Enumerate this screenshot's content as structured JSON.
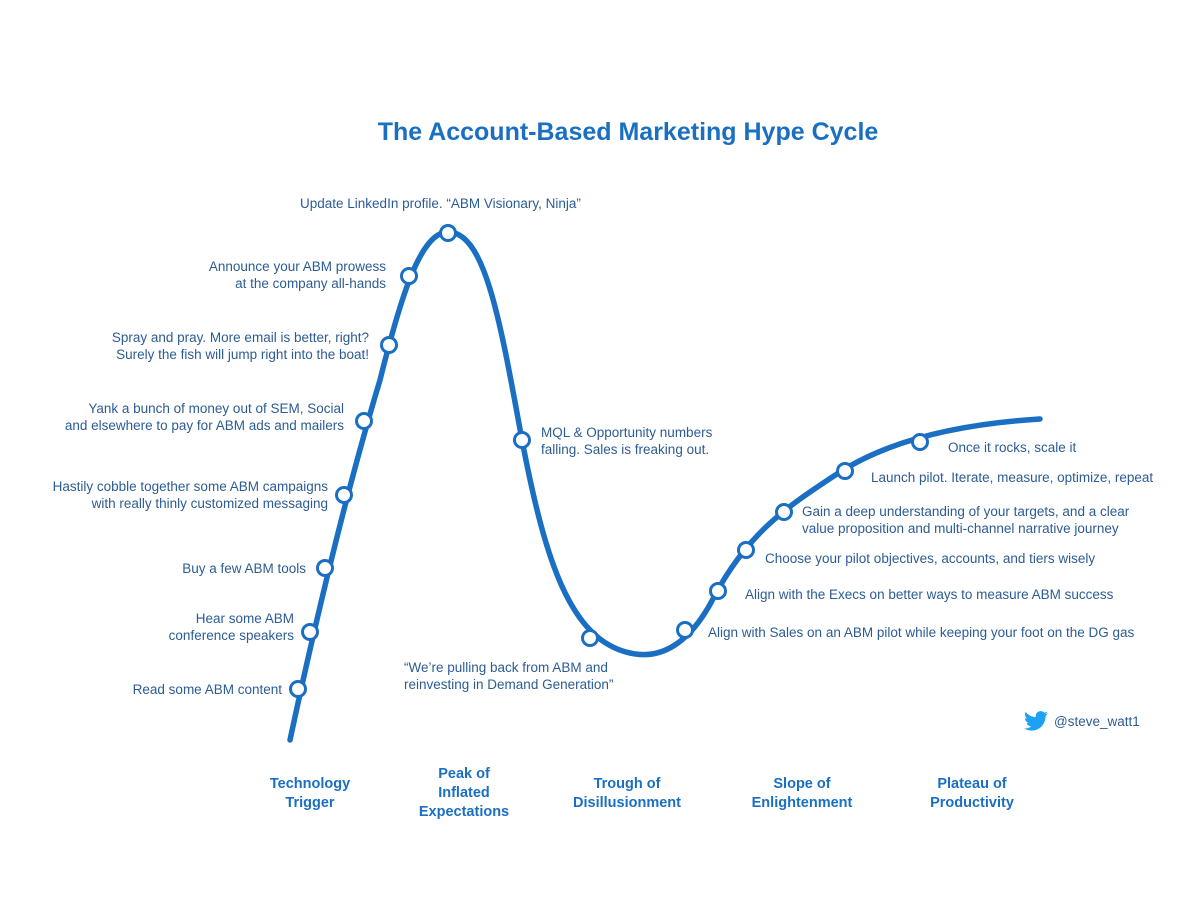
{
  "title": "The Account-Based Marketing Hype Cycle",
  "colors": {
    "curve": "#1a6fc2",
    "label": "#2c5c95",
    "twitter": "#1da1f2"
  },
  "milestones": [
    {
      "lines": [
        "Read some ABM content"
      ]
    },
    {
      "lines": [
        "Hear some ABM",
        "conference speakers"
      ]
    },
    {
      "lines": [
        "Buy a few ABM tools"
      ]
    },
    {
      "lines": [
        "Hastily cobble together some ABM campaigns",
        "with really thinly customized messaging"
      ]
    },
    {
      "lines": [
        "Yank a bunch of money out of SEM, Social",
        "and elsewhere to pay for ABM ads and mailers"
      ]
    },
    {
      "lines": [
        "Spray and pray. More email is better, right?",
        "Surely the fish will jump right into the boat!"
      ]
    },
    {
      "lines": [
        "Announce your ABM prowess",
        "at the company all-hands"
      ]
    },
    {
      "lines": [
        "Update LinkedIn profile. “ABM Visionary, Ninja”"
      ]
    },
    {
      "lines": [
        "MQL & Opportunity numbers",
        "falling. Sales is freaking out."
      ]
    },
    {
      "lines": [
        "“We’re pulling back from ABM and",
        "reinvesting in Demand Generation”"
      ]
    },
    {
      "lines": [
        "Align with Sales on an ABM pilot while keeping your foot on the DG gas"
      ]
    },
    {
      "lines": [
        "Align with the Execs on better ways to measure ABM success"
      ]
    },
    {
      "lines": [
        "Choose your pilot objectives, accounts, and tiers wisely"
      ]
    },
    {
      "lines": [
        "Gain a deep understanding of your targets, and a clear",
        "value proposition and multi-channel narrative journey"
      ]
    },
    {
      "lines": [
        "Launch pilot. Iterate, measure, optimize, repeat"
      ]
    },
    {
      "lines": [
        "Once it rocks, scale it"
      ]
    }
  ],
  "phases": [
    {
      "lines": [
        "Technology",
        "Trigger"
      ]
    },
    {
      "lines": [
        "Peak of",
        "Inflated",
        "Expectations"
      ]
    },
    {
      "lines": [
        "Trough of",
        "Disillusionment"
      ]
    },
    {
      "lines": [
        "Slope of",
        "Enlightenment"
      ]
    },
    {
      "lines": [
        "Plateau of",
        "Productivity"
      ]
    }
  ],
  "twitter": {
    "handle": "@steve_watt1",
    "icon": "twitter-bird-icon"
  }
}
